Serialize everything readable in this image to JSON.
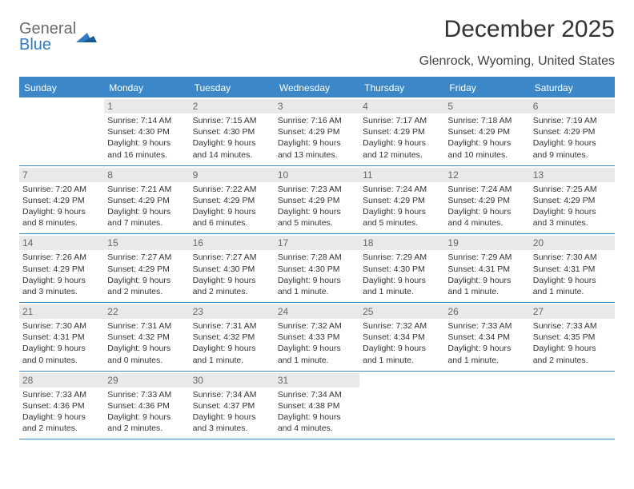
{
  "brand": {
    "line1": "General",
    "line2": "Blue"
  },
  "title": "December 2025",
  "location": "Glenrock, Wyoming, United States",
  "colors": {
    "header_bg": "#3b87c8",
    "header_text": "#ffffff",
    "daynum_bg": "#e9e9e9",
    "daynum_text": "#666666",
    "cell_text": "#333333",
    "rule": "#3b87c8",
    "page_bg": "#ffffff"
  },
  "daynames": [
    "Sunday",
    "Monday",
    "Tuesday",
    "Wednesday",
    "Thursday",
    "Friday",
    "Saturday"
  ],
  "weeks": [
    [
      {
        "n": "",
        "sunrise": "",
        "sunset": "",
        "day1": "",
        "day2": ""
      },
      {
        "n": "1",
        "sunrise": "Sunrise: 7:14 AM",
        "sunset": "Sunset: 4:30 PM",
        "day1": "Daylight: 9 hours",
        "day2": "and 16 minutes."
      },
      {
        "n": "2",
        "sunrise": "Sunrise: 7:15 AM",
        "sunset": "Sunset: 4:30 PM",
        "day1": "Daylight: 9 hours",
        "day2": "and 14 minutes."
      },
      {
        "n": "3",
        "sunrise": "Sunrise: 7:16 AM",
        "sunset": "Sunset: 4:29 PM",
        "day1": "Daylight: 9 hours",
        "day2": "and 13 minutes."
      },
      {
        "n": "4",
        "sunrise": "Sunrise: 7:17 AM",
        "sunset": "Sunset: 4:29 PM",
        "day1": "Daylight: 9 hours",
        "day2": "and 12 minutes."
      },
      {
        "n": "5",
        "sunrise": "Sunrise: 7:18 AM",
        "sunset": "Sunset: 4:29 PM",
        "day1": "Daylight: 9 hours",
        "day2": "and 10 minutes."
      },
      {
        "n": "6",
        "sunrise": "Sunrise: 7:19 AM",
        "sunset": "Sunset: 4:29 PM",
        "day1": "Daylight: 9 hours",
        "day2": "and 9 minutes."
      }
    ],
    [
      {
        "n": "7",
        "sunrise": "Sunrise: 7:20 AM",
        "sunset": "Sunset: 4:29 PM",
        "day1": "Daylight: 9 hours",
        "day2": "and 8 minutes."
      },
      {
        "n": "8",
        "sunrise": "Sunrise: 7:21 AM",
        "sunset": "Sunset: 4:29 PM",
        "day1": "Daylight: 9 hours",
        "day2": "and 7 minutes."
      },
      {
        "n": "9",
        "sunrise": "Sunrise: 7:22 AM",
        "sunset": "Sunset: 4:29 PM",
        "day1": "Daylight: 9 hours",
        "day2": "and 6 minutes."
      },
      {
        "n": "10",
        "sunrise": "Sunrise: 7:23 AM",
        "sunset": "Sunset: 4:29 PM",
        "day1": "Daylight: 9 hours",
        "day2": "and 5 minutes."
      },
      {
        "n": "11",
        "sunrise": "Sunrise: 7:24 AM",
        "sunset": "Sunset: 4:29 PM",
        "day1": "Daylight: 9 hours",
        "day2": "and 5 minutes."
      },
      {
        "n": "12",
        "sunrise": "Sunrise: 7:24 AM",
        "sunset": "Sunset: 4:29 PM",
        "day1": "Daylight: 9 hours",
        "day2": "and 4 minutes."
      },
      {
        "n": "13",
        "sunrise": "Sunrise: 7:25 AM",
        "sunset": "Sunset: 4:29 PM",
        "day1": "Daylight: 9 hours",
        "day2": "and 3 minutes."
      }
    ],
    [
      {
        "n": "14",
        "sunrise": "Sunrise: 7:26 AM",
        "sunset": "Sunset: 4:29 PM",
        "day1": "Daylight: 9 hours",
        "day2": "and 3 minutes."
      },
      {
        "n": "15",
        "sunrise": "Sunrise: 7:27 AM",
        "sunset": "Sunset: 4:29 PM",
        "day1": "Daylight: 9 hours",
        "day2": "and 2 minutes."
      },
      {
        "n": "16",
        "sunrise": "Sunrise: 7:27 AM",
        "sunset": "Sunset: 4:30 PM",
        "day1": "Daylight: 9 hours",
        "day2": "and 2 minutes."
      },
      {
        "n": "17",
        "sunrise": "Sunrise: 7:28 AM",
        "sunset": "Sunset: 4:30 PM",
        "day1": "Daylight: 9 hours",
        "day2": "and 1 minute."
      },
      {
        "n": "18",
        "sunrise": "Sunrise: 7:29 AM",
        "sunset": "Sunset: 4:30 PM",
        "day1": "Daylight: 9 hours",
        "day2": "and 1 minute."
      },
      {
        "n": "19",
        "sunrise": "Sunrise: 7:29 AM",
        "sunset": "Sunset: 4:31 PM",
        "day1": "Daylight: 9 hours",
        "day2": "and 1 minute."
      },
      {
        "n": "20",
        "sunrise": "Sunrise: 7:30 AM",
        "sunset": "Sunset: 4:31 PM",
        "day1": "Daylight: 9 hours",
        "day2": "and 1 minute."
      }
    ],
    [
      {
        "n": "21",
        "sunrise": "Sunrise: 7:30 AM",
        "sunset": "Sunset: 4:31 PM",
        "day1": "Daylight: 9 hours",
        "day2": "and 0 minutes."
      },
      {
        "n": "22",
        "sunrise": "Sunrise: 7:31 AM",
        "sunset": "Sunset: 4:32 PM",
        "day1": "Daylight: 9 hours",
        "day2": "and 0 minutes."
      },
      {
        "n": "23",
        "sunrise": "Sunrise: 7:31 AM",
        "sunset": "Sunset: 4:32 PM",
        "day1": "Daylight: 9 hours",
        "day2": "and 1 minute."
      },
      {
        "n": "24",
        "sunrise": "Sunrise: 7:32 AM",
        "sunset": "Sunset: 4:33 PM",
        "day1": "Daylight: 9 hours",
        "day2": "and 1 minute."
      },
      {
        "n": "25",
        "sunrise": "Sunrise: 7:32 AM",
        "sunset": "Sunset: 4:34 PM",
        "day1": "Daylight: 9 hours",
        "day2": "and 1 minute."
      },
      {
        "n": "26",
        "sunrise": "Sunrise: 7:33 AM",
        "sunset": "Sunset: 4:34 PM",
        "day1": "Daylight: 9 hours",
        "day2": "and 1 minute."
      },
      {
        "n": "27",
        "sunrise": "Sunrise: 7:33 AM",
        "sunset": "Sunset: 4:35 PM",
        "day1": "Daylight: 9 hours",
        "day2": "and 2 minutes."
      }
    ],
    [
      {
        "n": "28",
        "sunrise": "Sunrise: 7:33 AM",
        "sunset": "Sunset: 4:36 PM",
        "day1": "Daylight: 9 hours",
        "day2": "and 2 minutes."
      },
      {
        "n": "29",
        "sunrise": "Sunrise: 7:33 AM",
        "sunset": "Sunset: 4:36 PM",
        "day1": "Daylight: 9 hours",
        "day2": "and 2 minutes."
      },
      {
        "n": "30",
        "sunrise": "Sunrise: 7:34 AM",
        "sunset": "Sunset: 4:37 PM",
        "day1": "Daylight: 9 hours",
        "day2": "and 3 minutes."
      },
      {
        "n": "31",
        "sunrise": "Sunrise: 7:34 AM",
        "sunset": "Sunset: 4:38 PM",
        "day1": "Daylight: 9 hours",
        "day2": "and 4 minutes."
      },
      {
        "n": "",
        "sunrise": "",
        "sunset": "",
        "day1": "",
        "day2": ""
      },
      {
        "n": "",
        "sunrise": "",
        "sunset": "",
        "day1": "",
        "day2": ""
      },
      {
        "n": "",
        "sunrise": "",
        "sunset": "",
        "day1": "",
        "day2": ""
      }
    ]
  ]
}
